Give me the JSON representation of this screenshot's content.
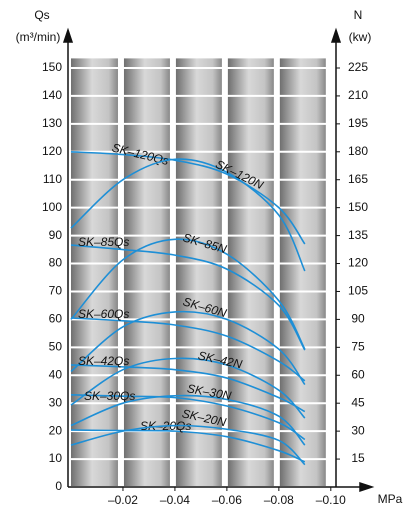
{
  "chart_data": {
    "type": "line",
    "y_label": "Qs",
    "y_unit": "(m³/min)",
    "y2_label": "N",
    "y2_unit": "(kw)",
    "x_label": "MPa",
    "x": [
      0,
      -0.02,
      -0.04,
      -0.06,
      -0.08,
      -0.09
    ],
    "xlim": [
      0,
      -0.102
    ],
    "xticks": [
      {
        "value": -0.02,
        "label": "–0.02"
      },
      {
        "value": -0.04,
        "label": "–0.04"
      },
      {
        "value": -0.06,
        "label": "–0.06"
      },
      {
        "value": -0.08,
        "label": "–0.08"
      },
      {
        "value": -0.1,
        "label": "–0.10"
      }
    ],
    "ylim": [
      0,
      152
    ],
    "yticks": [
      0,
      10,
      20,
      30,
      40,
      50,
      60,
      70,
      80,
      90,
      100,
      110,
      120,
      130,
      140,
      150
    ],
    "y2lim": [
      0,
      228
    ],
    "y2ticks": [
      15,
      30,
      45,
      60,
      75,
      90,
      105,
      120,
      135,
      150,
      165,
      180,
      195,
      210,
      225
    ],
    "grid": true,
    "series": [
      {
        "name": "SK–120Qs",
        "color": "#1e8fd6",
        "values": [
          120,
          119,
          117,
          112,
          100,
          87
        ]
      },
      {
        "name": "SK–120N",
        "color": "#1e8fd6",
        "axis": "y2",
        "values": [
          139,
          165,
          176,
          169,
          146,
          116
        ]
      },
      {
        "name": "SK–85Qs",
        "color": "#1e8fd6",
        "values": [
          86.6,
          85,
          83,
          78,
          65,
          49
        ]
      },
      {
        "name": "SK–85N",
        "color": "#1e8fd6",
        "axis": "y2",
        "values": [
          90,
          122,
          133,
          125,
          100,
          74
        ]
      },
      {
        "name": "SK–60Qs",
        "color": "#1e8fd6",
        "values": [
          60.5,
          59.5,
          58,
          54,
          45,
          38
        ]
      },
      {
        "name": "SK–60N",
        "color": "#1e8fd6",
        "axis": "y2",
        "values": [
          62,
          86,
          94,
          90,
          74,
          55
        ]
      },
      {
        "name": "SK–42Qs",
        "color": "#1e8fd6",
        "values": [
          43.7,
          43,
          42,
          39,
          32,
          27
        ]
      },
      {
        "name": "SK–42N",
        "color": "#1e8fd6",
        "axis": "y2",
        "values": [
          44,
          63,
          69,
          65.5,
          52,
          37
        ]
      },
      {
        "name": "SK–30Qs",
        "color": "#1e8fd6",
        "values": [
          33,
          32.5,
          32,
          29,
          23,
          17
        ]
      },
      {
        "name": "SK–30N",
        "color": "#1e8fd6",
        "axis": "y2",
        "values": [
          33,
          45,
          49,
          47,
          38,
          22.5
        ]
      },
      {
        "name": "SK–20Qs",
        "color": "#1e8fd6",
        "values": [
          20.4,
          20.2,
          20,
          18,
          13,
          9
        ]
      },
      {
        "name": "SK–20N",
        "color": "#1e8fd6",
        "axis": "y2",
        "values": [
          22.5,
          30,
          33,
          31,
          25,
          12
        ]
      }
    ]
  }
}
